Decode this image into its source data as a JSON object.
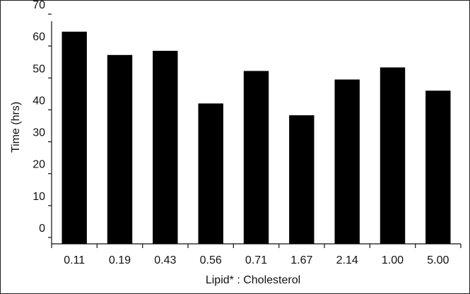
{
  "chart_data": {
    "type": "bar",
    "title": "",
    "xlabel": "Lipid* : Cholesterol",
    "ylabel": "Time (hrs)",
    "categories": [
      "0.11",
      "0.19",
      "0.43",
      "0.56",
      "0.71",
      "1.67",
      "2.14",
      "1.00",
      "5.00"
    ],
    "values": [
      64.5,
      57.2,
      58.5,
      42.0,
      52.2,
      38.3,
      49.5,
      53.3,
      46.0
    ],
    "yticks": [
      0,
      10,
      20,
      30,
      40,
      50,
      60,
      70
    ],
    "ytick_labels": [
      "0",
      "10",
      "20",
      "30",
      "40",
      "50",
      "60",
      "70"
    ],
    "ylim": [
      0,
      70
    ],
    "grid": false,
    "legend": "none",
    "bar_color": "#000000"
  }
}
